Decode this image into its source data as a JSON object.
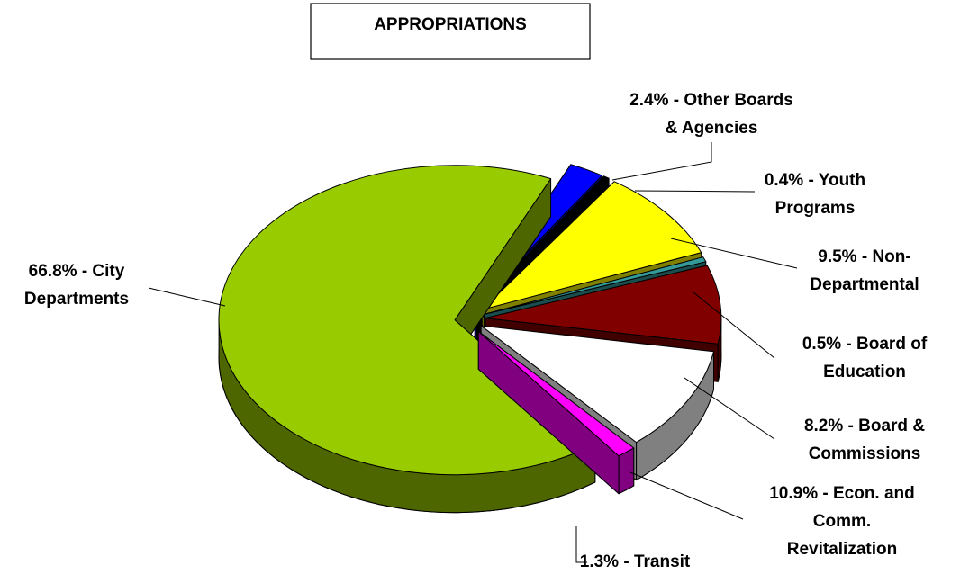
{
  "chart_data": {
    "type": "pie",
    "title": "APPROPRIATIONS",
    "values": [
      2.4,
      0.4,
      9.5,
      0.5,
      8.2,
      10.9,
      1.3,
      66.8
    ],
    "value_labels": [
      [
        "2.4% - Other Boards",
        "& Agencies"
      ],
      [
        "0.4% - Youth",
        "Programs"
      ],
      [
        "9.5% - Non-",
        "Departmental"
      ],
      [
        "0.5% - Board of",
        "Education"
      ],
      [
        "8.2% - Board &",
        "Commissions"
      ],
      [
        "10.9% - Econ. and",
        "Comm.",
        "Revitalization"
      ],
      [
        "1.3% - Transit"
      ],
      [
        "66.8% - City",
        "Departments"
      ]
    ],
    "colors": [
      "#0000ff",
      "#000000",
      "#ffff00",
      "#339999",
      "#800000",
      "#ffffff",
      "#ff00ff",
      "#99cc00"
    ],
    "side_colors": [
      "#000080",
      "#000000",
      "#808000",
      "#1a4d4d",
      "#400000",
      "#808080",
      "#800080",
      "#4d6600"
    ]
  }
}
